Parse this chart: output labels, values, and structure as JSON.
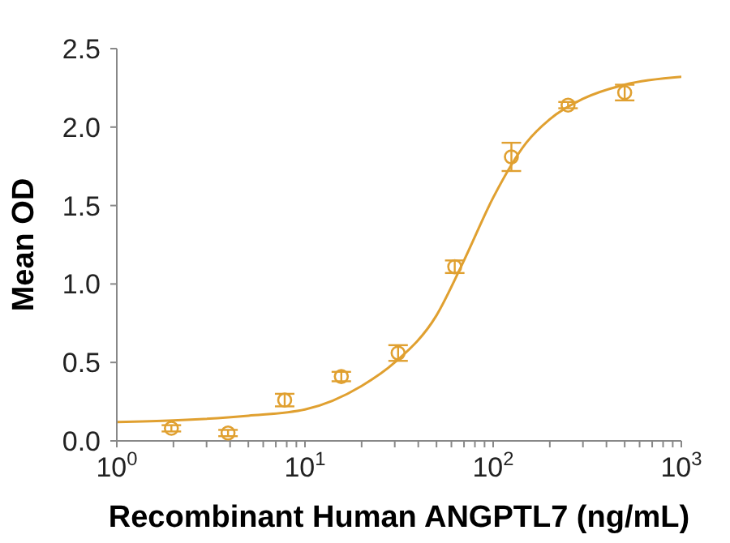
{
  "chart_data": {
    "type": "scatter",
    "xlabel": "Recombinant Human ANGPTL7 (ng/mL)",
    "ylabel": "Mean OD",
    "log": "x",
    "xlim": [
      1,
      1000
    ],
    "xticks": [
      {
        "value": 1,
        "label": "10$^{0}$"
      },
      {
        "value": 2,
        "label": null
      },
      {
        "value": 3,
        "label": null
      },
      {
        "value": 4,
        "label": null
      },
      {
        "value": 5,
        "label": null
      },
      {
        "value": 6,
        "label": null
      },
      {
        "value": 7,
        "label": null
      },
      {
        "value": 8,
        "label": null
      },
      {
        "value": 9,
        "label": null
      },
      {
        "value": 10,
        "label": "10$^{1}$"
      },
      {
        "value": 20,
        "label": null
      },
      {
        "value": 30,
        "label": null
      },
      {
        "value": 40,
        "label": null
      },
      {
        "value": 50,
        "label": null
      },
      {
        "value": 60,
        "label": null
      },
      {
        "value": 70,
        "label": null
      },
      {
        "value": 80,
        "label": null
      },
      {
        "value": 90,
        "label": null
      },
      {
        "value": 100,
        "label": "10$^{2}$"
      },
      {
        "value": 200,
        "label": null
      },
      {
        "value": 300,
        "label": null
      },
      {
        "value": 400,
        "label": null
      },
      {
        "value": 500,
        "label": null
      },
      {
        "value": 600,
        "label": null
      },
      {
        "value": 700,
        "label": null
      },
      {
        "value": 800,
        "label": null
      },
      {
        "value": 900,
        "label": null
      },
      {
        "value": 1000,
        "label": "10$^{3}$"
      }
    ],
    "ylim": [
      0,
      2.5
    ],
    "yticks": [
      {
        "value": 0,
        "label": "0.0"
      },
      0.5,
      {
        "value": 1,
        "label": "1.0"
      },
      1.5,
      {
        "value": 2,
        "label": "2.0"
      },
      2.5
    ],
    "grid": false,
    "series": [
      {
        "type": "line",
        "color": "#e0a030",
        "marker": "none",
        "line_style": "solid",
        "x": [
          1,
          2,
          5,
          10,
          20,
          30,
          50,
          70,
          100,
          150,
          200,
          300,
          500,
          1000
        ],
        "values": [
          0.12,
          0.13,
          0.16,
          0.2,
          0.35,
          0.5,
          0.8,
          1.15,
          1.55,
          1.9,
          2.05,
          2.18,
          2.27,
          2.32
        ]
      },
      {
        "color": "#e0a030",
        "marker": "circle",
        "x": [
          1.95,
          3.9,
          7.8,
          15.6,
          31.25,
          62.5,
          125,
          250,
          500
        ],
        "values": [
          0.08,
          0.05,
          0.26,
          0.41,
          0.56,
          1.11,
          1.81,
          2.14,
          2.22
        ],
        "errors": [
          0.02,
          0.02,
          0.04,
          0.03,
          0.05,
          0.04,
          0.09,
          0.02,
          0.05
        ]
      }
    ]
  }
}
